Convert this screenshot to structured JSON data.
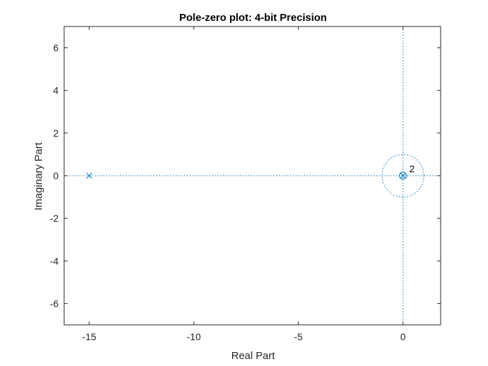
{
  "chart_data": {
    "type": "scatter",
    "title": "Pole-zero plot: 4-bit Precision",
    "xlabel": "Real Part",
    "ylabel": "Imaginary Part",
    "xlim": [
      -16.2,
      1.8
    ],
    "ylim": [
      -7,
      7
    ],
    "xticks": [
      -15,
      -10,
      -5,
      0
    ],
    "yticks": [
      -6,
      -4,
      -2,
      0,
      2,
      4,
      6
    ],
    "grid": false,
    "unit_circle": true,
    "zero_axes_dotted": true,
    "zeros": [
      {
        "x": 0,
        "y": 0,
        "multiplicity": 2
      }
    ],
    "poles": [
      {
        "x": -15,
        "y": 0
      },
      {
        "x": 0,
        "y": 0
      }
    ],
    "annotations": [
      {
        "x": 0,
        "y": 0,
        "text": "2"
      }
    ],
    "colors": {
      "markers": "#0072BD",
      "axes": "#262626"
    }
  }
}
